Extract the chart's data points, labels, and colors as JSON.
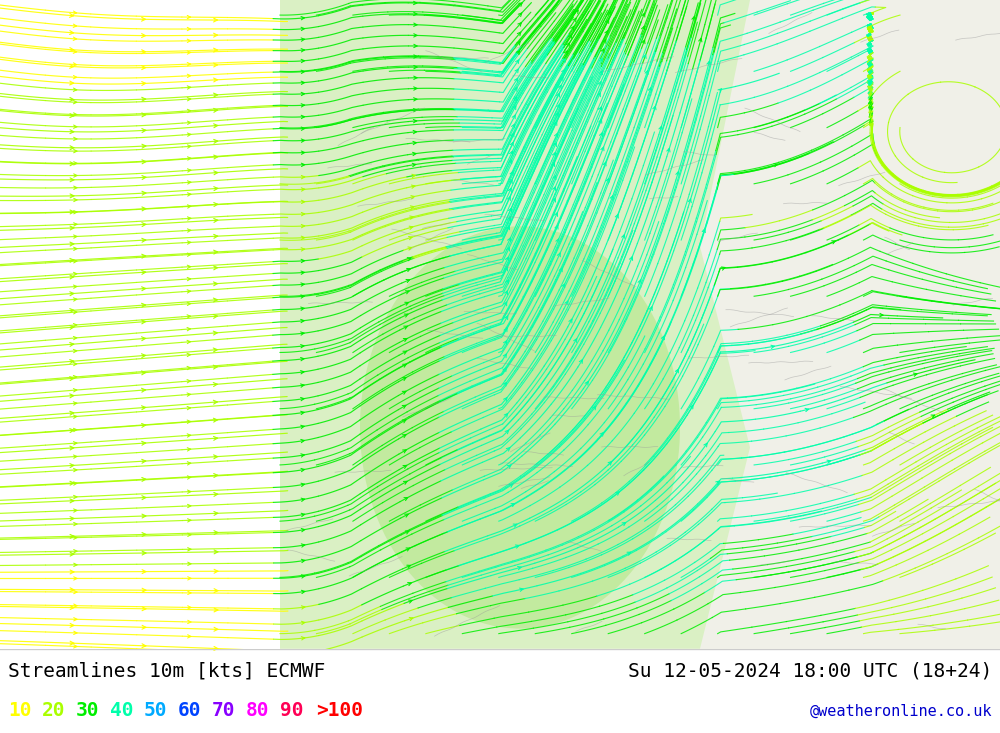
{
  "title_left": "Streamlines 10m [kts] ECMWF",
  "title_right": "Su 12-05-2024 18:00 UTC (18+24)",
  "watermark": "@weatheronline.co.uk",
  "legend_values": [
    "10",
    "20",
    "30",
    "40",
    "50",
    "60",
    "70",
    "80",
    "90",
    ">100"
  ],
  "legend_colors": [
    "#ffff00",
    "#aaff00",
    "#00ee00",
    "#00ffaa",
    "#00aaff",
    "#0044ff",
    "#8800ff",
    "#ff00ff",
    "#ff0055",
    "#ff0000"
  ],
  "background_color": "#ffffff",
  "ocean_color": "#d8d8d8",
  "land_color": "#f0f0e8",
  "land_green_color": "#d8f0c0",
  "title_fontsize": 14,
  "legend_fontsize": 14,
  "watermark_fontsize": 11,
  "fig_width": 10.0,
  "fig_height": 7.33,
  "dpi": 100
}
